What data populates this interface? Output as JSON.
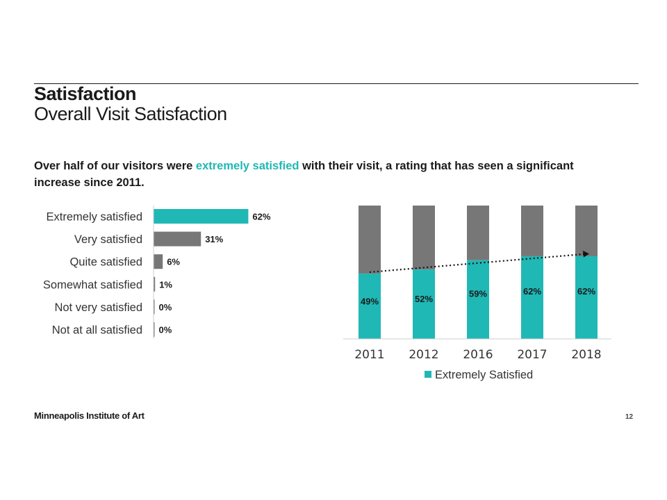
{
  "slide": {
    "title": "Satisfaction",
    "subtitle": "Overall Visit Satisfaction",
    "headline_pre": "Over half of our visitors were ",
    "headline_highlight": "extremely satisfied",
    "headline_post": " with their visit, a rating that has seen a significant increase since 2011.",
    "brand": "Minneapolis Institute of Art",
    "page_number": "12"
  },
  "colors": {
    "teal": "#1fb8b5",
    "gray": "#777777"
  },
  "chart_data": [
    {
      "type": "bar",
      "orientation": "horizontal",
      "categories": [
        "Extremely satisfied",
        "Very satisfied",
        "Quite satisfied",
        "Somewhat satisfied",
        "Not very satisfied",
        "Not at all satisfied"
      ],
      "values": [
        62,
        31,
        6,
        1,
        0,
        0
      ],
      "labels": [
        "62%",
        "31%",
        "6%",
        "1%",
        "0%",
        "0%"
      ],
      "bar_colors": [
        "#1fb8b5",
        "#777777",
        "#777777",
        "#777777",
        "#777777",
        "#777777"
      ],
      "xlim": [
        0,
        100
      ]
    },
    {
      "type": "bar",
      "stacked": true,
      "categories": [
        "2011",
        "2012",
        "2016",
        "2017",
        "2018"
      ],
      "series": [
        {
          "name": "Extremely Satisfied",
          "values": [
            49,
            52,
            59,
            62,
            62
          ],
          "labels": [
            "49%",
            "52%",
            "59%",
            "62%",
            "62%"
          ]
        }
      ],
      "ylim": [
        0,
        100
      ],
      "trendline": true,
      "legend": "bottom"
    }
  ]
}
